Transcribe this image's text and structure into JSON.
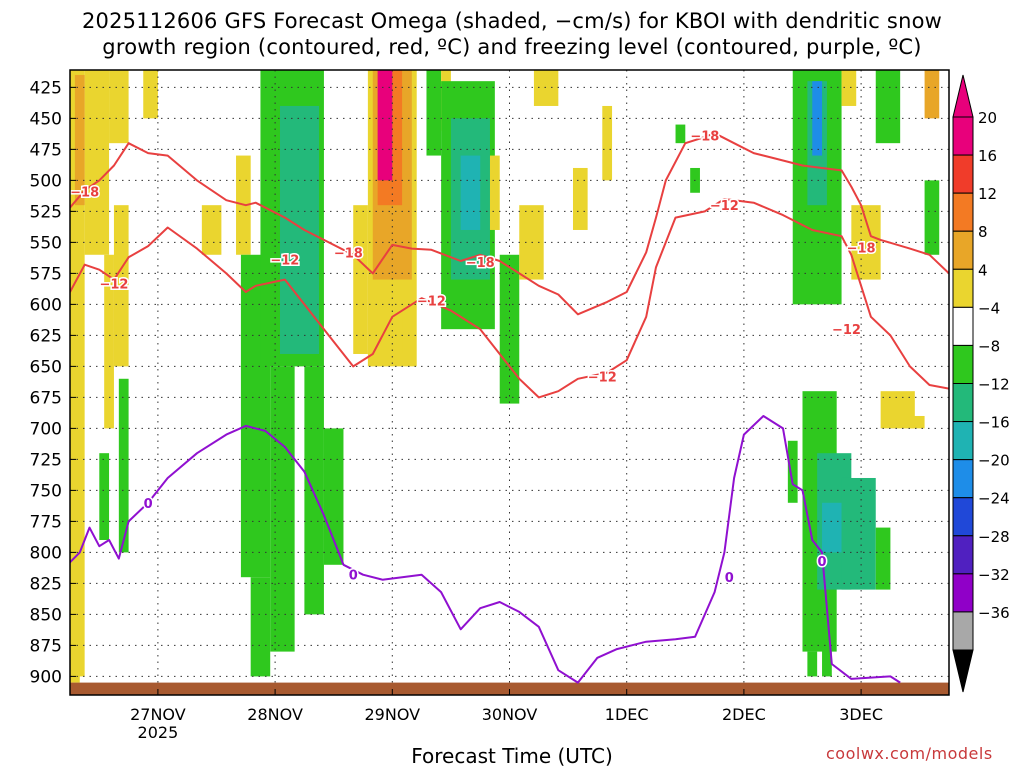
{
  "title": {
    "line1": "2025112606 GFS Forecast Omega (shaded, −cm/s) for KBOI with dendritic snow",
    "line2": "growth region (contoured, red, ºC) and freezing level (contoured, purple, ºC)"
  },
  "credit": "coolwx.com/models",
  "chart_data": {
    "type": "heatmap",
    "xlabel": "Forecast Time (UTC)",
    "x_ticks": [
      {
        "label": "27NOV",
        "sublabel": "2025",
        "hour": 18
      },
      {
        "label": "28NOV",
        "hour": 42
      },
      {
        "label": "29NOV",
        "hour": 66
      },
      {
        "label": "30NOV",
        "hour": 90
      },
      {
        "label": "1DEC",
        "hour": 114
      },
      {
        "label": "2DEC",
        "hour": 138
      },
      {
        "label": "3DEC",
        "hour": 162
      }
    ],
    "xlim_hours": [
      0,
      180
    ],
    "y_ticks": [
      425,
      450,
      475,
      500,
      525,
      550,
      575,
      600,
      625,
      650,
      675,
      700,
      725,
      750,
      775,
      800,
      825,
      850,
      875,
      900
    ],
    "ylim_hPa": [
      411,
      915
    ],
    "grid": true,
    "colorbar": {
      "labels": [
        "20",
        "16",
        "12",
        "8",
        "4",
        "−4",
        "−8",
        "−12",
        "−16",
        "−20",
        "−24",
        "−28",
        "−32",
        "−36"
      ],
      "colors": [
        "#e8007b",
        "#f03c2a",
        "#f37a23",
        "#e8a628",
        "#ead52f",
        "#ffffff",
        "#2fc81e",
        "#23b97a",
        "#1fb3b3",
        "#1e8de8",
        "#2048d8",
        "#5020c0",
        "#9000c8",
        "#a8a8a8"
      ],
      "top_arrow_color": "#e8007b",
      "bottom_arrow_color": "#000000"
    },
    "contours": {
      "dgz_color": "#e84040",
      "freezing_color": "#9010d0",
      "dgz_minus18": [
        [
          0,
          522
        ],
        [
          3,
          508
        ],
        [
          6,
          500
        ],
        [
          9,
          488
        ],
        [
          12,
          470
        ],
        [
          16,
          478
        ],
        [
          20,
          480
        ],
        [
          26,
          500
        ],
        [
          32,
          516
        ],
        [
          36,
          520
        ],
        [
          38,
          518
        ],
        [
          44,
          530
        ],
        [
          48,
          540
        ],
        [
          52,
          548
        ],
        [
          58,
          560
        ],
        [
          62,
          575
        ],
        [
          66,
          552
        ],
        [
          70,
          555
        ],
        [
          74,
          556
        ],
        [
          80,
          565
        ],
        [
          84,
          560
        ],
        [
          88,
          565
        ],
        [
          92,
          575
        ],
        [
          96,
          585
        ],
        [
          100,
          592
        ],
        [
          104,
          608
        ],
        [
          110,
          598
        ],
        [
          114,
          590
        ],
        [
          118,
          558
        ],
        [
          120,
          530
        ],
        [
          122,
          500
        ],
        [
          126,
          470
        ],
        [
          130,
          465
        ],
        [
          132,
          462
        ],
        [
          136,
          470
        ],
        [
          140,
          478
        ],
        [
          144,
          482
        ],
        [
          150,
          488
        ],
        [
          154,
          490
        ],
        [
          158,
          492
        ],
        [
          160,
          505
        ],
        [
          162,
          520
        ],
        [
          164,
          545
        ],
        [
          166,
          548
        ],
        [
          172,
          555
        ],
        [
          176,
          560
        ],
        [
          180,
          575
        ]
      ],
      "dgz_minus12": [
        [
          0,
          590
        ],
        [
          3,
          568
        ],
        [
          6,
          572
        ],
        [
          9,
          580
        ],
        [
          12,
          562
        ],
        [
          16,
          553
        ],
        [
          20,
          538
        ],
        [
          26,
          555
        ],
        [
          32,
          575
        ],
        [
          36,
          590
        ],
        [
          38,
          585
        ],
        [
          44,
          580
        ],
        [
          48,
          600
        ],
        [
          52,
          620
        ],
        [
          58,
          650
        ],
        [
          62,
          640
        ],
        [
          66,
          610
        ],
        [
          72,
          595
        ],
        [
          78,
          605
        ],
        [
          84,
          620
        ],
        [
          88,
          640
        ],
        [
          92,
          660
        ],
        [
          96,
          675
        ],
        [
          100,
          670
        ],
        [
          104,
          660
        ],
        [
          110,
          655
        ],
        [
          114,
          645
        ],
        [
          118,
          610
        ],
        [
          120,
          570
        ],
        [
          124,
          530
        ],
        [
          130,
          525
        ],
        [
          134,
          515
        ],
        [
          140,
          518
        ],
        [
          146,
          528
        ],
        [
          152,
          540
        ],
        [
          158,
          545
        ],
        [
          160,
          560
        ],
        [
          162,
          585
        ],
        [
          164,
          610
        ],
        [
          168,
          625
        ],
        [
          172,
          650
        ],
        [
          176,
          665
        ],
        [
          180,
          668
        ]
      ],
      "freezing_0": [
        [
          0,
          808
        ],
        [
          2,
          800
        ],
        [
          4,
          780
        ],
        [
          6,
          795
        ],
        [
          8,
          790
        ],
        [
          10,
          805
        ],
        [
          12,
          775
        ],
        [
          16,
          760
        ],
        [
          20,
          740
        ],
        [
          26,
          720
        ],
        [
          32,
          705
        ],
        [
          36,
          698
        ],
        [
          40,
          702
        ],
        [
          44,
          715
        ],
        [
          48,
          735
        ],
        [
          52,
          770
        ],
        [
          56,
          810
        ],
        [
          60,
          818
        ],
        [
          64,
          822
        ],
        [
          68,
          820
        ],
        [
          72,
          818
        ],
        [
          76,
          832
        ],
        [
          80,
          862
        ],
        [
          84,
          845
        ],
        [
          88,
          840
        ],
        [
          92,
          848
        ],
        [
          96,
          860
        ],
        [
          100,
          895
        ],
        [
          104,
          905
        ],
        [
          108,
          885
        ],
        [
          112,
          878
        ],
        [
          118,
          872
        ],
        [
          124,
          870
        ],
        [
          128,
          868
        ],
        [
          132,
          832
        ],
        [
          134,
          800
        ],
        [
          136,
          740
        ],
        [
          138,
          705
        ],
        [
          142,
          690
        ],
        [
          146,
          700
        ],
        [
          148,
          745
        ],
        [
          150,
          750
        ],
        [
          152,
          790
        ],
        [
          154,
          800
        ],
        [
          156,
          890
        ],
        [
          160,
          902
        ],
        [
          168,
          900
        ],
        [
          170,
          905
        ]
      ]
    },
    "contour_labels": [
      {
        "text": "−18",
        "hour": 3,
        "hPa": 509
      },
      {
        "text": "−12",
        "hour": 9,
        "hPa": 583
      },
      {
        "text": "−12",
        "hour": 44,
        "hPa": 564
      },
      {
        "text": "−18",
        "hour": 57,
        "hPa": 558
      },
      {
        "text": "−18",
        "hour": 84,
        "hPa": 566
      },
      {
        "text": "−12",
        "hour": 74,
        "hPa": 597
      },
      {
        "text": "−12",
        "hour": 109,
        "hPa": 658
      },
      {
        "text": "−18",
        "hour": 130,
        "hPa": 464
      },
      {
        "text": "−12",
        "hour": 134,
        "hPa": 520
      },
      {
        "text": "−18",
        "hour": 162,
        "hPa": 554
      },
      {
        "text": "−12",
        "hour": 159,
        "hPa": 620
      },
      {
        "text": "0",
        "hour": 16,
        "hPa": 760
      },
      {
        "text": "0",
        "hour": 58,
        "hPa": 818
      },
      {
        "text": "0",
        "hour": 135,
        "hPa": 820
      },
      {
        "text": "0",
        "hour": 154,
        "hPa": 807
      }
    ],
    "shaded_regions": [
      {
        "color": "#ead52f",
        "h0": 0,
        "h1": 3,
        "p0": 411,
        "p1": 900
      },
      {
        "color": "#ead52f",
        "h0": 3,
        "h1": 8,
        "p0": 411,
        "p1": 560
      },
      {
        "color": "#e8a628",
        "h0": 1,
        "h1": 3,
        "p0": 415,
        "p1": 520
      },
      {
        "color": "#ead52f",
        "h0": 7,
        "h1": 9,
        "p0": 560,
        "p1": 700
      },
      {
        "color": "#ead52f",
        "h0": 8,
        "h1": 12,
        "p0": 411,
        "p1": 470
      },
      {
        "color": "#ead52f",
        "h0": 9,
        "h1": 12,
        "p0": 520,
        "p1": 650
      },
      {
        "color": "#2fc81e",
        "h0": 6,
        "h1": 8,
        "p0": 720,
        "p1": 790
      },
      {
        "color": "#2fc81e",
        "h0": 10,
        "h1": 12,
        "p0": 660,
        "p1": 800
      },
      {
        "color": "#ead52f",
        "h0": 15,
        "h1": 18,
        "p0": 411,
        "p1": 450
      },
      {
        "color": "#ead52f",
        "h0": 27,
        "h1": 31,
        "p0": 520,
        "p1": 560
      },
      {
        "color": "#ead52f",
        "h0": 34,
        "h1": 37,
        "p0": 480,
        "p1": 560
      },
      {
        "color": "#2fc81e",
        "h0": 35,
        "h1": 41,
        "p0": 560,
        "p1": 820
      },
      {
        "color": "#2fc81e",
        "h0": 39,
        "h1": 52,
        "p0": 411,
        "p1": 650
      },
      {
        "color": "#23b97a",
        "h0": 43,
        "h1": 51,
        "p0": 440,
        "p1": 640
      },
      {
        "color": "#2fc81e",
        "h0": 37,
        "h1": 41,
        "p0": 820,
        "p1": 900
      },
      {
        "color": "#2fc81e",
        "h0": 41,
        "h1": 46,
        "p0": 650,
        "p1": 880
      },
      {
        "color": "#2fc81e",
        "h0": 48,
        "h1": 52,
        "p0": 650,
        "p1": 850
      },
      {
        "color": "#2fc81e",
        "h0": 52,
        "h1": 56,
        "p0": 700,
        "p1": 810
      },
      {
        "color": "#ead52f",
        "h0": 58,
        "h1": 61,
        "p0": 520,
        "p1": 640
      },
      {
        "color": "#ead52f",
        "h0": 61,
        "h1": 71,
        "p0": 411,
        "p1": 650
      },
      {
        "color": "#e8a628",
        "h0": 62,
        "h1": 70,
        "p0": 411,
        "p1": 580
      },
      {
        "color": "#f37a23",
        "h0": 63,
        "h1": 68,
        "p0": 411,
        "p1": 520
      },
      {
        "color": "#e8007b",
        "h0": 63,
        "h1": 66,
        "p0": 411,
        "p1": 500
      },
      {
        "color": "#ead52f",
        "h0": 65,
        "h1": 68,
        "p0": 600,
        "p1": 640
      },
      {
        "color": "#2fc81e",
        "h0": 73,
        "h1": 76,
        "p0": 411,
        "p1": 480
      },
      {
        "color": "#ead52f",
        "h0": 76,
        "h1": 78,
        "p0": 411,
        "p1": 460
      },
      {
        "color": "#2fc81e",
        "h0": 76,
        "h1": 87,
        "p0": 420,
        "p1": 620
      },
      {
        "color": "#23b97a",
        "h0": 78,
        "h1": 86,
        "p0": 450,
        "p1": 580
      },
      {
        "color": "#1fb3b3",
        "h0": 80,
        "h1": 84,
        "p0": 480,
        "p1": 540
      },
      {
        "color": "#ead52f",
        "h0": 86,
        "h1": 88,
        "p0": 480,
        "p1": 540
      },
      {
        "color": "#2fc81e",
        "h0": 88,
        "h1": 92,
        "p0": 560,
        "p1": 680
      },
      {
        "color": "#ead52f",
        "h0": 92,
        "h1": 97,
        "p0": 520,
        "p1": 580
      },
      {
        "color": "#ead52f",
        "h0": 95,
        "h1": 100,
        "p0": 411,
        "p1": 440
      },
      {
        "color": "#ead52f",
        "h0": 103,
        "h1": 106,
        "p0": 490,
        "p1": 540
      },
      {
        "color": "#ead52f",
        "h0": 109,
        "h1": 111,
        "p0": 440,
        "p1": 500
      },
      {
        "color": "#2fc81e",
        "h0": 124,
        "h1": 126,
        "p0": 455,
        "p1": 470
      },
      {
        "color": "#2fc81e",
        "h0": 127,
        "h1": 129,
        "p0": 490,
        "p1": 510
      },
      {
        "color": "#2fc81e",
        "h0": 147,
        "h1": 149,
        "p0": 710,
        "p1": 760
      },
      {
        "color": "#2fc81e",
        "h0": 148,
        "h1": 158,
        "p0": 411,
        "p1": 600
      },
      {
        "color": "#23b97a",
        "h0": 151,
        "h1": 155,
        "p0": 420,
        "p1": 520
      },
      {
        "color": "#1e8de8",
        "h0": 152,
        "h1": 154,
        "p0": 420,
        "p1": 480
      },
      {
        "color": "#ead52f",
        "h0": 158,
        "h1": 161,
        "p0": 411,
        "p1": 440
      },
      {
        "color": "#ead52f",
        "h0": 160,
        "h1": 166,
        "p0": 520,
        "p1": 580
      },
      {
        "color": "#2fc81e",
        "h0": 165,
        "h1": 170,
        "p0": 411,
        "p1": 470
      },
      {
        "color": "#e8a628",
        "h0": 175,
        "h1": 178,
        "p0": 411,
        "p1": 450
      },
      {
        "color": "#ead52f",
        "h0": 172,
        "h1": 175,
        "p0": 690,
        "p1": 700
      },
      {
        "color": "#ead52f",
        "h0": 166,
        "h1": 173,
        "p0": 670,
        "p1": 700
      },
      {
        "color": "#2fc81e",
        "h0": 175,
        "h1": 178,
        "p0": 500,
        "p1": 560
      },
      {
        "color": "#2fc81e",
        "h0": 150,
        "h1": 157,
        "p0": 670,
        "p1": 880
      },
      {
        "color": "#23b97a",
        "h0": 153,
        "h1": 160,
        "p0": 720,
        "p1": 830
      },
      {
        "color": "#1fb3b3",
        "h0": 154,
        "h1": 158,
        "p0": 760,
        "p1": 800
      },
      {
        "color": "#23b97a",
        "h0": 158,
        "h1": 165,
        "p0": 740,
        "p1": 830
      },
      {
        "color": "#2fc81e",
        "h0": 165,
        "h1": 168,
        "p0": 780,
        "p1": 830
      },
      {
        "color": "#2fc81e",
        "h0": 151,
        "h1": 153,
        "p0": 880,
        "p1": 900
      },
      {
        "color": "#2fc81e",
        "h0": 154,
        "h1": 156,
        "p0": 870,
        "p1": 900
      },
      {
        "color": "#ead52f",
        "h0": 0,
        "h1": 2,
        "p0": 870,
        "p1": 905
      }
    ],
    "terrain_color": "#a85a30",
    "terrain_hPa": 905
  }
}
